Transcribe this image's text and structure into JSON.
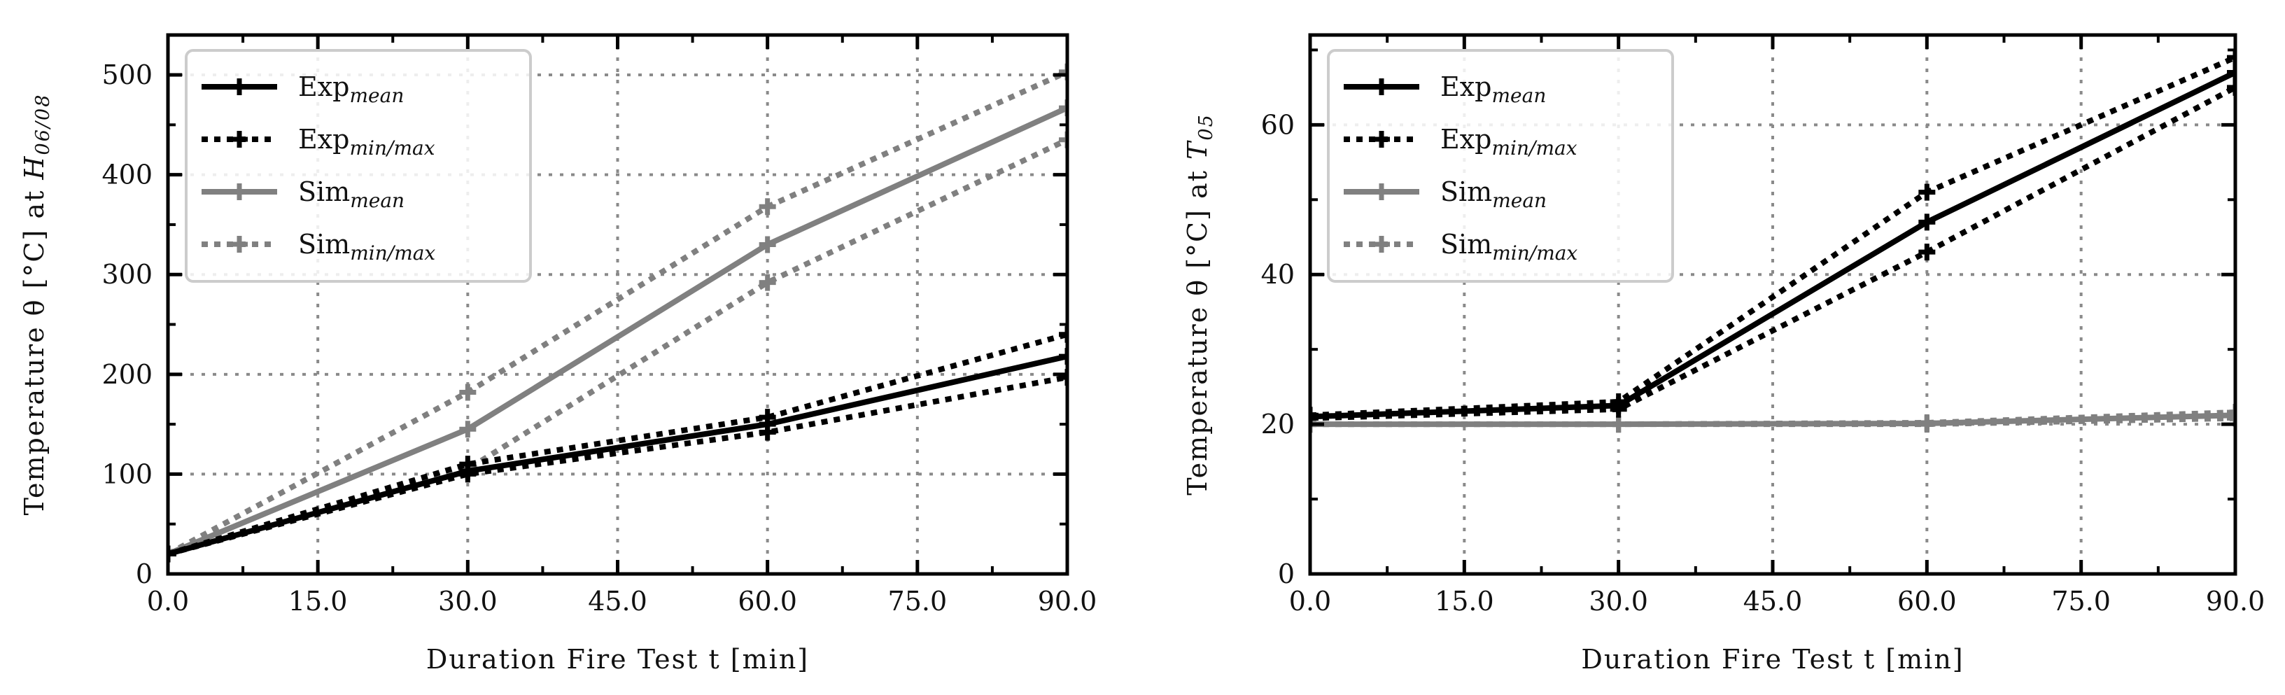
{
  "chart_data": [
    {
      "type": "line",
      "xlabel": "Duration Fire Test t [min]",
      "ylabel_main": "Temperature θ [°C] at ",
      "ylabel_symbol": "H",
      "ylabel_subscript": "06/08",
      "xlim": [
        0,
        90
      ],
      "ylim": [
        0,
        540
      ],
      "xticks": [
        0,
        15,
        30,
        45,
        60,
        75,
        90
      ],
      "xtick_labels": [
        "0.0",
        "15.0",
        "30.0",
        "45.0",
        "60.0",
        "75.0",
        "90.0"
      ],
      "yticks": [
        0,
        100,
        200,
        300,
        400,
        500
      ],
      "ytick_labels": [
        "0",
        "100",
        "200",
        "300",
        "400",
        "500"
      ],
      "grid": true,
      "legend_position": "top-left",
      "series": [
        {
          "name": "Sim_min",
          "legend": "",
          "x": [
            0,
            30,
            60,
            90
          ],
          "values": [
            20,
            105,
            292,
            435
          ],
          "color": "#808080",
          "style": "dotted"
        },
        {
          "name": "Sim_max",
          "legend": "",
          "x": [
            0,
            30,
            60,
            90
          ],
          "values": [
            20,
            182,
            368,
            503
          ],
          "color": "#808080",
          "style": "dotted"
        },
        {
          "name": "Sim_mean",
          "legend": "",
          "x": [
            0,
            30,
            60,
            90
          ],
          "values": [
            20,
            145,
            330,
            467
          ],
          "color": "#808080",
          "style": "solid"
        },
        {
          "name": "Exp_min",
          "legend": "",
          "x": [
            0,
            30,
            60,
            90
          ],
          "values": [
            20,
            100,
            142,
            197
          ],
          "color": "#000000",
          "style": "dotted"
        },
        {
          "name": "Exp_max",
          "legend": "",
          "x": [
            0,
            30,
            60,
            90
          ],
          "values": [
            20,
            110,
            157,
            240
          ],
          "color": "#000000",
          "style": "dotted"
        },
        {
          "name": "Exp_mean",
          "legend": "",
          "x": [
            0,
            30,
            60,
            90
          ],
          "values": [
            20,
            103,
            150,
            218
          ],
          "color": "#000000",
          "style": "solid"
        }
      ],
      "legend": [
        {
          "base": "Exp",
          "sub": "mean",
          "color": "#000000",
          "style": "solid"
        },
        {
          "base": "Exp",
          "sub": "min/max",
          "color": "#000000",
          "style": "dotted"
        },
        {
          "base": "Sim",
          "sub": "mean",
          "color": "#808080",
          "style": "solid"
        },
        {
          "base": "Sim",
          "sub": "min/max",
          "color": "#808080",
          "style": "dotted"
        }
      ]
    },
    {
      "type": "line",
      "xlabel": "Duration Fire Test t [min]",
      "ylabel_main": "Temperature θ [°C] at ",
      "ylabel_symbol": "T",
      "ylabel_subscript": "05",
      "xlim": [
        0,
        90
      ],
      "ylim": [
        0,
        72
      ],
      "xticks": [
        0,
        15,
        30,
        45,
        60,
        75,
        90
      ],
      "xtick_labels": [
        "0.0",
        "15.0",
        "30.0",
        "45.0",
        "60.0",
        "75.0",
        "90.0"
      ],
      "yticks": [
        0,
        20,
        40,
        60
      ],
      "ytick_labels": [
        "0",
        "20",
        "40",
        "60"
      ],
      "grid": true,
      "legend_position": "top-left",
      "series": [
        {
          "name": "Sim_min",
          "legend": "",
          "x": [
            0,
            30,
            60,
            90
          ],
          "values": [
            20,
            20,
            20,
            20.8
          ],
          "color": "#808080",
          "style": "dotted"
        },
        {
          "name": "Sim_max",
          "legend": "",
          "x": [
            0,
            30,
            60,
            90
          ],
          "values": [
            20,
            20,
            20.2,
            21.6
          ],
          "color": "#808080",
          "style": "dotted"
        },
        {
          "name": "Sim_mean",
          "legend": "",
          "x": [
            0,
            30,
            60,
            90
          ],
          "values": [
            20,
            20,
            20.1,
            21.2
          ],
          "color": "#808080",
          "style": "solid"
        },
        {
          "name": "Exp_min",
          "legend": "",
          "x": [
            0,
            30,
            60,
            90
          ],
          "values": [
            20.8,
            22,
            43,
            65
          ],
          "color": "#000000",
          "style": "dotted"
        },
        {
          "name": "Exp_max",
          "legend": "",
          "x": [
            0,
            30,
            60,
            90
          ],
          "values": [
            21.2,
            23,
            51,
            69
          ],
          "color": "#000000",
          "style": "dotted"
        },
        {
          "name": "Exp_mean",
          "legend": "",
          "x": [
            0,
            30,
            60,
            90
          ],
          "values": [
            21,
            22.5,
            47,
            67
          ],
          "color": "#000000",
          "style": "solid"
        }
      ],
      "legend": [
        {
          "base": "Exp",
          "sub": "mean",
          "color": "#000000",
          "style": "solid"
        },
        {
          "base": "Exp",
          "sub": "min/max",
          "color": "#000000",
          "style": "dotted"
        },
        {
          "base": "Sim",
          "sub": "mean",
          "color": "#808080",
          "style": "solid"
        },
        {
          "base": "Sim",
          "sub": "min/max",
          "color": "#808080",
          "style": "dotted"
        }
      ]
    }
  ]
}
